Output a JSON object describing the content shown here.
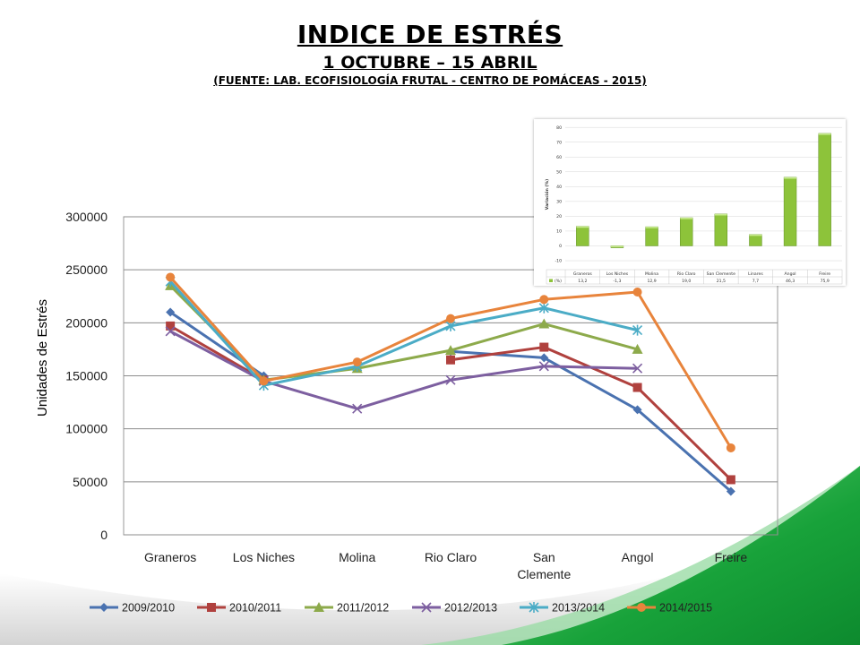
{
  "slide": {
    "title": "INDICE DE ESTRÉS",
    "subtitle": "1 OCTUBRE – 15 ABRIL",
    "source": "(FUENTE: LAB. ECOFISIOLOGÍA FRUTAL - CENTRO DE POMÁCEAS - 2015)"
  },
  "chart_data": [
    {
      "type": "line",
      "title": "",
      "xlabel": "",
      "ylabel": "Unidades de Estrés",
      "ylim": [
        0,
        300000
      ],
      "yticks": [
        0,
        50000,
        100000,
        150000,
        200000,
        250000,
        300000
      ],
      "grid": true,
      "legend_position": "bottom",
      "categories": [
        "Graneros",
        "Los Niches",
        "Molina",
        "Rio Claro",
        "San Clemente",
        "Angol",
        "Freire"
      ],
      "category_lines": [
        [
          "Graneros"
        ],
        [
          "Los Niches"
        ],
        [
          "Molina"
        ],
        [
          "Rio Claro"
        ],
        [
          "San",
          "Clemente"
        ],
        [
          "Angol"
        ],
        [
          "Freire"
        ]
      ],
      "series": [
        {
          "name": "2009/2010",
          "color": "#4A72B0",
          "marker": "diamond",
          "values": [
            210000,
            150000,
            null,
            173000,
            167000,
            118000,
            41000
          ]
        },
        {
          "name": "2010/2011",
          "color": "#B0413E",
          "marker": "square",
          "values": [
            197000,
            146000,
            null,
            165000,
            177000,
            139000,
            52000
          ]
        },
        {
          "name": "2011/2012",
          "color": "#8DAA4B",
          "marker": "triangle",
          "values": [
            235000,
            146000,
            157000,
            174000,
            199000,
            175000,
            null
          ]
        },
        {
          "name": "2012/2013",
          "color": "#7D5FA0",
          "marker": "x",
          "values": [
            192000,
            145000,
            119000,
            146000,
            159000,
            157000,
            null
          ]
        },
        {
          "name": "2013/2014",
          "color": "#4BACC6",
          "marker": "star",
          "values": [
            239000,
            141000,
            159000,
            197000,
            214000,
            193000,
            null
          ]
        },
        {
          "name": "2014/2015",
          "color": "#E8843C",
          "marker": "circle",
          "values": [
            243000,
            145000,
            163000,
            204000,
            222000,
            229000,
            82000
          ]
        }
      ]
    },
    {
      "type": "bar",
      "title": "",
      "ylabel": "Variación (%)",
      "ylim": [
        -10,
        80
      ],
      "yticks": [
        -10,
        0,
        10,
        20,
        30,
        40,
        50,
        60,
        70,
        80
      ],
      "grid": true,
      "categories": [
        "Graneros",
        "Los Niches",
        "Molina",
        "Rio Claro",
        "San Clemente",
        "Linares",
        "Angol",
        "Freire"
      ],
      "series": [
        {
          "name": "(%)",
          "color": "#8DC33A",
          "values": [
            13.2,
            -1.3,
            12.9,
            19.0,
            21.5,
            7.7,
            46.3,
            75.9
          ]
        }
      ],
      "table_row_label": "(%)",
      "table_values": [
        "13,2",
        "-1,3",
        "12,9",
        "19,0",
        "21,5",
        "7,7",
        "46,3",
        "75,9"
      ]
    }
  ]
}
